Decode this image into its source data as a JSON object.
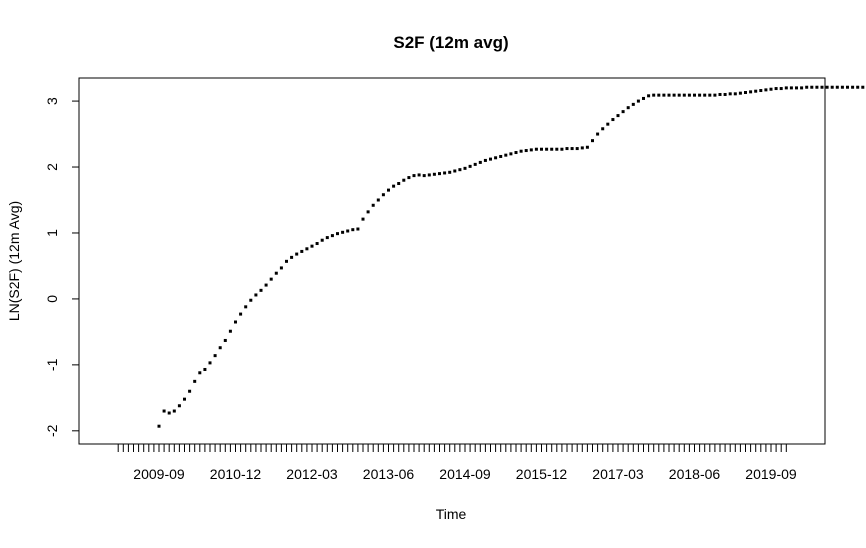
{
  "chart_data": {
    "type": "scatter",
    "title": "S2F (12m avg)",
    "xlabel": "Time",
    "ylabel": "LN(S2F) (12m Avg)",
    "x_tick_labels": [
      "2009-09",
      "2010-12",
      "2012-03",
      "2013-06",
      "2014-09",
      "2015-12",
      "2017-03",
      "2018-06",
      "2019-09"
    ],
    "x_start": "2009-01",
    "x_end": "2019-12",
    "y_ticks": [
      -2,
      -1,
      0,
      1,
      2,
      3
    ],
    "y_tick_labels": [
      "-2",
      "-1",
      "0",
      "1",
      "2",
      "3"
    ],
    "ylim": [
      -2.2,
      3.35
    ],
    "grid": false,
    "legend": "none",
    "point_color": "#000000",
    "series": [
      {
        "x_start": "2009-09",
        "x_end": "2019-12",
        "values": [
          -1.93,
          -1.7,
          -1.73,
          -1.7,
          -1.62,
          -1.52,
          -1.4,
          -1.25,
          -1.12,
          -1.07,
          -0.97,
          -0.86,
          -0.74,
          -0.63,
          -0.49,
          -0.35,
          -0.23,
          -0.12,
          -0.02,
          0.06,
          0.13,
          0.21,
          0.3,
          0.39,
          0.47,
          0.57,
          0.63,
          0.68,
          0.72,
          0.76,
          0.8,
          0.84,
          0.89,
          0.93,
          0.96,
          0.99,
          1.01,
          1.03,
          1.05,
          1.06,
          1.21,
          1.32,
          1.42,
          1.5,
          1.58,
          1.65,
          1.71,
          1.75,
          1.8,
          1.84,
          1.87,
          1.88,
          1.87,
          1.88,
          1.89,
          1.9,
          1.91,
          1.92,
          1.94,
          1.96,
          1.98,
          2.01,
          2.04,
          2.07,
          2.1,
          2.12,
          2.14,
          2.16,
          2.18,
          2.2,
          2.22,
          2.24,
          2.25,
          2.26,
          2.27,
          2.27,
          2.27,
          2.27,
          2.27,
          2.27,
          2.28,
          2.28,
          2.28,
          2.29,
          2.3,
          2.4,
          2.5,
          2.58,
          2.65,
          2.72,
          2.78,
          2.84,
          2.9,
          2.95,
          3.0,
          3.04,
          3.08,
          3.09,
          3.09,
          3.09,
          3.09,
          3.09,
          3.09,
          3.09,
          3.09,
          3.09,
          3.09,
          3.09,
          3.09,
          3.09,
          3.1,
          3.1,
          3.11,
          3.11,
          3.12,
          3.13,
          3.14,
          3.15,
          3.16,
          3.17,
          3.18,
          3.19,
          3.19,
          3.2,
          3.2,
          3.2,
          3.2,
          3.21,
          3.21,
          3.21,
          3.21,
          3.21,
          3.21,
          3.21,
          3.21,
          3.21,
          3.21,
          3.21,
          3.21,
          3.21,
          3.21,
          3.21,
          3.21,
          3.21,
          3.21,
          3.21,
          3.21,
          3.21,
          3.21,
          3.21
        ]
      }
    ]
  }
}
